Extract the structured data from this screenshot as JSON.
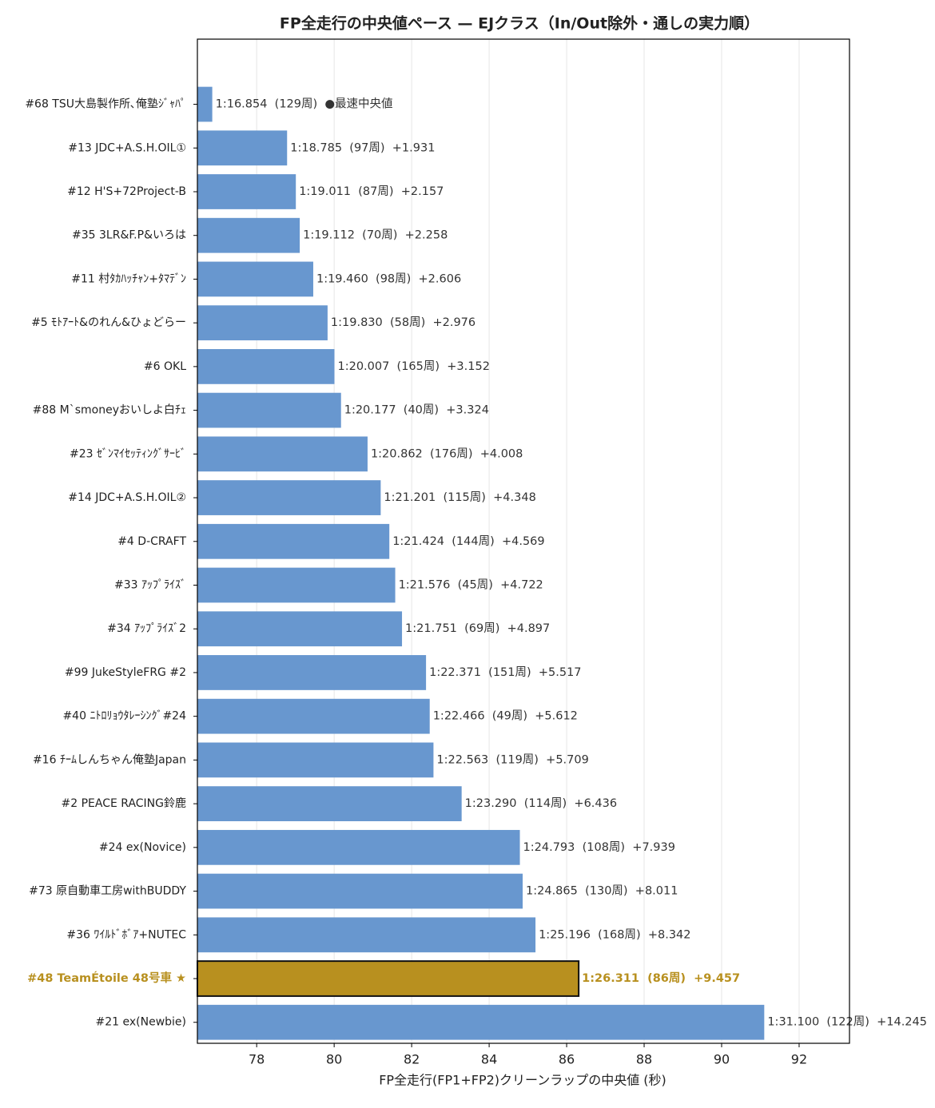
{
  "chart_data": {
    "type": "barh",
    "title": "FP全走行の中央値ペース — EJクラス（In/Out除外・通しの実力順）",
    "xlabel": "FP全走行(FP1+FP2)クリーンラップの中央値 (秒)",
    "categories": [
      "#68 TSU大島製作所､俺塾ｼﾞｬﾊﾟ",
      "#13 JDC+A.S.H.OIL①",
      "#12 H'S+72Project-B",
      "#35 3LR&F.P&いろは",
      "#11 村ﾀｶﾊｯﾁｬﾝ+ﾀﾏﾃﾞﾝ",
      "#5 ﾓﾄｱｰﾄ&のれん&ひょどらー",
      "#6 OKL",
      "#88 M`smoneyおいしよ白ﾁｪ",
      "#23 ｾﾞﾝﾏｲｾｯﾃｨﾝｸﾞｻｰﾋﾞ",
      "#14 JDC+A.S.H.OIL②",
      "#4 D-CRAFT",
      "#33 ｱｯﾌﾟﾗｲｽﾞ",
      "#34 ｱｯﾌﾟﾗｲｽﾞ2",
      "#99 JukeStyleFRG #2",
      "#40 ﾆﾄﾛﾘｮｳﾀﾚｰｼﾝｸﾞ#24",
      "#16 ﾁｰﾑしんちゃん俺塾Japan",
      "#2 PEACE RACING鈴鹿",
      "#24 ex(Novice)",
      "#73 原自動車工房withBUDDY",
      "#36 ﾜｲﾙﾄﾞﾎﾞｱ+NUTEC",
      "#48 TeamÉtoile 48号車 ★",
      "#21 ex(Newbie)"
    ],
    "values": [
      76.854,
      78.785,
      79.011,
      79.112,
      79.46,
      79.83,
      80.007,
      80.177,
      80.862,
      81.201,
      81.424,
      81.576,
      81.751,
      82.371,
      82.466,
      82.563,
      83.29,
      84.793,
      84.865,
      85.196,
      86.311,
      91.1
    ],
    "value_labels": [
      "1:16.854  (129周)  ●最速中央値",
      "1:18.785  (97周)  +1.931",
      "1:19.011  (87周)  +2.157",
      "1:19.112  (70周)  +2.258",
      "1:19.460  (98周)  +2.606",
      "1:19.830  (58周)  +2.976",
      "1:20.007  (165周)  +3.152",
      "1:20.177  (40周)  +3.324",
      "1:20.862  (176周)  +4.008",
      "1:21.201  (115周)  +4.348",
      "1:21.424  (144周)  +4.569",
      "1:21.576  (45周)  +4.722",
      "1:21.751  (69周)  +4.897",
      "1:22.371  (151周)  +5.517",
      "1:22.466  (49周)  +5.612",
      "1:22.563  (119周)  +5.709",
      "1:23.290  (114周)  +6.436",
      "1:24.793  (108周)  +7.939",
      "1:24.865  (130周)  +8.011",
      "1:25.196  (168周)  +8.342",
      "1:26.311  (86周)  +9.457",
      "1:31.100  (122周)  +14.245"
    ],
    "color": "#6897cf",
    "highlight": {
      "index": 20,
      "color": "#b8901f"
    },
    "xlim": [
      76.47,
      93.3
    ],
    "xticks": [
      78,
      80,
      82,
      84,
      86,
      88,
      90,
      92
    ],
    "grid": true
  }
}
